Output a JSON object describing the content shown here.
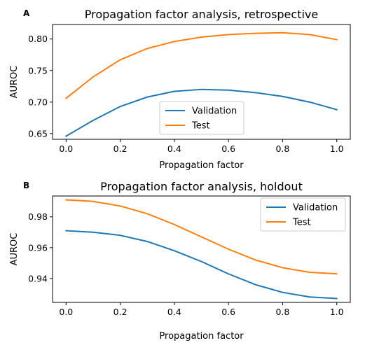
{
  "chart_data": [
    {
      "type": "line",
      "panel_letter": "A",
      "title": "Propagation factor analysis, retrospective",
      "xlabel": "Propagation factor",
      "ylabel": "AUROC",
      "x": [
        0.0,
        0.1,
        0.2,
        0.3,
        0.4,
        0.5,
        0.6,
        0.7,
        0.8,
        0.9,
        1.0
      ],
      "xlim": [
        -0.05,
        1.05
      ],
      "ylim": [
        0.641,
        0.823
      ],
      "xticks": [
        0.0,
        0.2,
        0.4,
        0.6,
        0.8,
        1.0
      ],
      "xtick_labels": [
        "0.0",
        "0.2",
        "0.4",
        "0.6",
        "0.8",
        "1.0"
      ],
      "yticks": [
        0.65,
        0.7,
        0.75,
        0.8
      ],
      "ytick_labels": [
        "0.65",
        "0.70",
        "0.75",
        "0.80"
      ],
      "grid": false,
      "legend_position": "lower-center",
      "series": [
        {
          "name": "Validation",
          "color": "#1f77b4",
          "values": [
            0.646,
            0.671,
            0.693,
            0.708,
            0.717,
            0.72,
            0.719,
            0.715,
            0.709,
            0.7,
            0.688
          ]
        },
        {
          "name": "Test",
          "color": "#ff7f0e",
          "values": [
            0.706,
            0.74,
            0.767,
            0.785,
            0.796,
            0.803,
            0.807,
            0.809,
            0.81,
            0.807,
            0.799
          ]
        }
      ]
    },
    {
      "type": "line",
      "panel_letter": "B",
      "title": "Propagation factor analysis, holdout",
      "xlabel": "Propagation factor",
      "ylabel": "AUROC",
      "x": [
        0.0,
        0.1,
        0.2,
        0.3,
        0.4,
        0.5,
        0.6,
        0.7,
        0.8,
        0.9,
        1.0
      ],
      "xlim": [
        -0.05,
        1.05
      ],
      "ylim": [
        0.9245,
        0.9935
      ],
      "xticks": [
        0.0,
        0.2,
        0.4,
        0.6,
        0.8,
        1.0
      ],
      "xtick_labels": [
        "0.0",
        "0.2",
        "0.4",
        "0.6",
        "0.8",
        "1.0"
      ],
      "yticks": [
        0.94,
        0.96,
        0.98
      ],
      "ytick_labels": [
        "0.94",
        "0.96",
        "0.98"
      ],
      "grid": false,
      "legend_position": "upper-right",
      "series": [
        {
          "name": "Validation",
          "color": "#1f77b4",
          "values": [
            0.971,
            0.97,
            0.968,
            0.964,
            0.958,
            0.951,
            0.943,
            0.936,
            0.931,
            0.928,
            0.927
          ]
        },
        {
          "name": "Test",
          "color": "#ff7f0e",
          "values": [
            0.991,
            0.99,
            0.987,
            0.982,
            0.975,
            0.967,
            0.959,
            0.952,
            0.947,
            0.944,
            0.943
          ]
        }
      ]
    }
  ]
}
